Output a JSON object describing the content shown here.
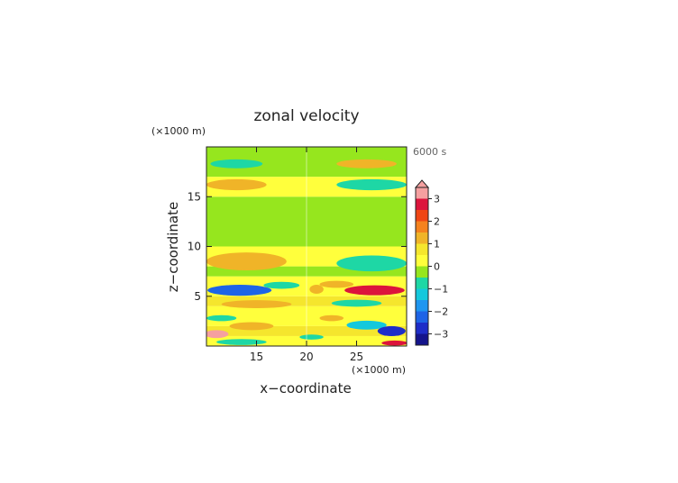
{
  "chart_data": {
    "type": "heatmap",
    "title": "zonal velocity",
    "time_label": "6000 s",
    "xlabel": "x−coordinate",
    "ylabel": "z−coordinate",
    "x_unit": "(×1000 m)",
    "y_unit": "(×1000 m)",
    "xlim": [
      10,
      30
    ],
    "ylim": [
      0,
      20
    ],
    "x_ticks": [
      15,
      20,
      25
    ],
    "y_ticks": [
      5,
      10,
      15
    ],
    "colorbar": {
      "tick_values": [
        3,
        2,
        1,
        0,
        -1,
        -2,
        -3
      ],
      "tick_labels": [
        "3",
        "2",
        "1",
        "0",
        "−1",
        "−2",
        "−3"
      ],
      "range": [
        -3.5,
        3.5
      ],
      "levels": [
        {
          "from": -3.5,
          "to": -3.0,
          "color": "#14148c"
        },
        {
          "from": -3.0,
          "to": -2.5,
          "color": "#1e2dc8"
        },
        {
          "from": -2.5,
          "to": -2.0,
          "color": "#1e64e6"
        },
        {
          "from": -2.0,
          "to": -1.5,
          "color": "#1e96f0"
        },
        {
          "from": -1.5,
          "to": -1.0,
          "color": "#14c8dc"
        },
        {
          "from": -1.0,
          "to": -0.5,
          "color": "#1ed7a5"
        },
        {
          "from": -0.5,
          "to": 0.0,
          "color": "#96e61e"
        },
        {
          "from": 0.0,
          "to": 0.5,
          "color": "#ffff3c"
        },
        {
          "from": 0.5,
          "to": 1.0,
          "color": "#f5e62d"
        },
        {
          "from": 1.0,
          "to": 1.5,
          "color": "#f0b428"
        },
        {
          "from": 1.5,
          "to": 2.0,
          "color": "#f5821e"
        },
        {
          "from": 2.0,
          "to": 2.5,
          "color": "#f04614"
        },
        {
          "from": 2.5,
          "to": 3.0,
          "color": "#dc143c"
        },
        {
          "from": 3.0,
          "to": 3.5,
          "color": "#f5a0a0"
        }
      ]
    },
    "background_bands": [
      {
        "z_range": [
          0,
          1
        ],
        "color": "#ffff3c"
      },
      {
        "z_range": [
          1,
          2
        ],
        "color": "#f5e62d"
      },
      {
        "z_range": [
          2,
          4
        ],
        "color": "#ffff3c"
      },
      {
        "z_range": [
          4,
          5
        ],
        "color": "#f5e62d"
      },
      {
        "z_range": [
          5,
          7
        ],
        "color": "#ffff3c"
      },
      {
        "z_range": [
          7,
          8
        ],
        "color": "#96e61e"
      },
      {
        "z_range": [
          8,
          10
        ],
        "color": "#ffff3c"
      },
      {
        "z_range": [
          10,
          15
        ],
        "color": "#96e61e"
      },
      {
        "z_range": [
          15,
          17
        ],
        "color": "#ffff3c"
      },
      {
        "z_range": [
          17,
          20
        ],
        "color": "#96e61e"
      }
    ],
    "features": [
      {
        "x": 13.0,
        "z": 18.3,
        "rx": 2.6,
        "rz": 0.45,
        "value": -1.0
      },
      {
        "x": 26.0,
        "z": 18.3,
        "rx": 3.0,
        "rz": 0.45,
        "value": 1.0
      },
      {
        "x": 13.0,
        "z": 16.2,
        "rx": 3.0,
        "rz": 0.55,
        "value": 1.0
      },
      {
        "x": 26.5,
        "z": 16.2,
        "rx": 3.5,
        "rz": 0.55,
        "value": -1.0
      },
      {
        "x": 14.0,
        "z": 8.5,
        "rx": 4.0,
        "rz": 0.9,
        "value": 1.0
      },
      {
        "x": 26.5,
        "z": 8.3,
        "rx": 3.5,
        "rz": 0.8,
        "value": -1.0
      },
      {
        "x": 13.3,
        "z": 5.6,
        "rx": 3.2,
        "rz": 0.55,
        "value": -2.5
      },
      {
        "x": 17.5,
        "z": 6.1,
        "rx": 1.8,
        "rz": 0.35,
        "value": -1.0
      },
      {
        "x": 15.0,
        "z": 4.2,
        "rx": 3.5,
        "rz": 0.4,
        "value": 1.0
      },
      {
        "x": 21.0,
        "z": 5.7,
        "rx": 0.7,
        "rz": 0.45,
        "value": 1.0
      },
      {
        "x": 23.0,
        "z": 6.2,
        "rx": 1.7,
        "rz": 0.35,
        "value": 1.0
      },
      {
        "x": 26.8,
        "z": 5.6,
        "rx": 3.0,
        "rz": 0.5,
        "value": 2.5
      },
      {
        "x": 25.0,
        "z": 4.3,
        "rx": 2.5,
        "rz": 0.35,
        "value": -1.0
      },
      {
        "x": 26.0,
        "z": 2.1,
        "rx": 2.0,
        "rz": 0.45,
        "value": -1.5
      },
      {
        "x": 22.5,
        "z": 2.8,
        "rx": 1.2,
        "rz": 0.3,
        "value": 1.0
      },
      {
        "x": 14.5,
        "z": 2.0,
        "rx": 2.2,
        "rz": 0.4,
        "value": 1.0
      },
      {
        "x": 11.5,
        "z": 2.8,
        "rx": 1.5,
        "rz": 0.3,
        "value": -1.0
      },
      {
        "x": 11.0,
        "z": 1.2,
        "rx": 1.2,
        "rz": 0.4,
        "value": 3.0
      },
      {
        "x": 13.5,
        "z": 0.4,
        "rx": 2.5,
        "rz": 0.3,
        "value": -1.0
      },
      {
        "x": 28.5,
        "z": 1.5,
        "rx": 1.4,
        "rz": 0.5,
        "value": -3.0
      },
      {
        "x": 28.8,
        "z": 0.3,
        "rx": 1.3,
        "rz": 0.25,
        "value": 2.5
      },
      {
        "x": 20.5,
        "z": 0.9,
        "rx": 1.2,
        "rz": 0.25,
        "value": -1.0
      }
    ]
  }
}
